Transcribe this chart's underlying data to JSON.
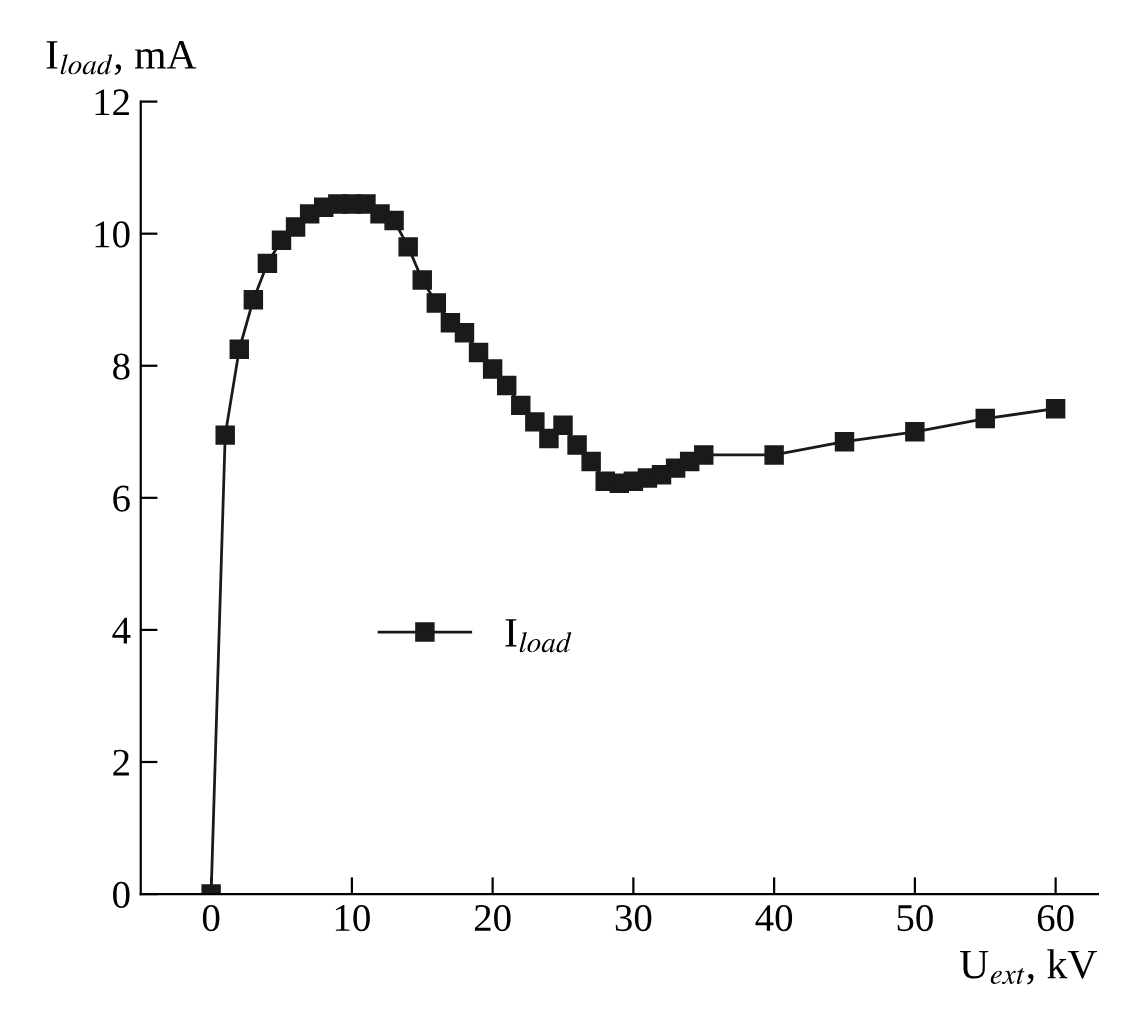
{
  "chart_data": {
    "type": "line",
    "ylabel": "I$_{load}$, mA",
    "xlabel": "U$_{ext}$, kV",
    "x": [
      0,
      1,
      2,
      3,
      4,
      5,
      6,
      7,
      8,
      9,
      10,
      11,
      12,
      13,
      14,
      15,
      16,
      17,
      18,
      19,
      20,
      21,
      22,
      23,
      24,
      25,
      26,
      27,
      28,
      29,
      30,
      31,
      32,
      33,
      34,
      35,
      40,
      45,
      50,
      55,
      60
    ],
    "series": [
      {
        "name": "I$_{load}$",
        "color": "#1a1a1a",
        "values": [
          0,
          6.95,
          8.25,
          9.0,
          9.55,
          9.9,
          10.1,
          10.3,
          10.4,
          10.45,
          10.45,
          10.45,
          10.3,
          10.2,
          9.8,
          9.3,
          8.95,
          8.65,
          8.5,
          8.2,
          7.95,
          7.7,
          7.4,
          7.15,
          6.9,
          7.1,
          6.8,
          6.55,
          6.25,
          6.22,
          6.25,
          6.3,
          6.35,
          6.45,
          6.55,
          6.65,
          6.65,
          6.85,
          7.0,
          7.2,
          7.35
        ]
      }
    ],
    "xlim": [
      -5,
      63
    ],
    "ylim": [
      0,
      12
    ],
    "xticks": [
      0,
      10,
      20,
      30,
      40,
      50,
      60
    ],
    "yticks": [
      0,
      2,
      4,
      6,
      8,
      10,
      12
    ],
    "marker": "square",
    "line_style": "solid",
    "legend": "center",
    "grid": false
  }
}
